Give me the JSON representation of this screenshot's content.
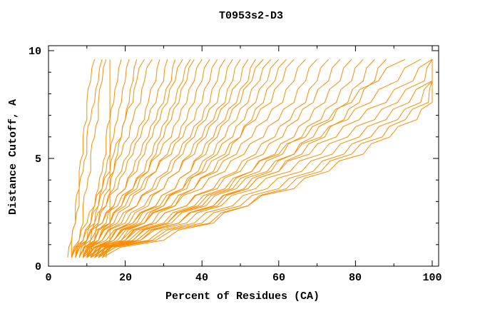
{
  "window": {
    "background_color": "#ffffff",
    "text_color": "#000000"
  },
  "chart_data": {
    "type": "line",
    "title": "T0953s2-D3",
    "xlabel": "Percent of Residues (CA)",
    "ylabel": "Distance Cutoff, A",
    "xlim": [
      0,
      101.7
    ],
    "ylim": [
      0,
      10.25
    ],
    "grid": false,
    "legend": "none",
    "line_color": "#ff8c00",
    "axis_color": "#000000",
    "xticks_major": [
      0,
      20,
      40,
      60,
      80,
      100
    ],
    "xtick_labels": [
      "0",
      "20",
      "40",
      "60",
      "80",
      "100"
    ],
    "xticks_minor": [
      10,
      30,
      50,
      70,
      90
    ],
    "yticks_major": [
      0,
      5,
      10
    ],
    "ytick_labels": [
      "0",
      "5",
      "10"
    ],
    "yticks_minor": [
      1,
      2,
      3,
      4,
      6,
      7,
      8,
      9
    ],
    "cutoffs": [
      0.4,
      1.2,
      2.0,
      2.8,
      3.6,
      4.4,
      5.2,
      6.0,
      6.8,
      7.6,
      8.6,
      9.6
    ],
    "series_percent_by_cutoff": [
      [
        6,
        6,
        7,
        7,
        8,
        8,
        9,
        9,
        10,
        10,
        11,
        12
      ],
      [
        5,
        6,
        7,
        8,
        8,
        9,
        10,
        10,
        11,
        12,
        13,
        14
      ],
      [
        7,
        8,
        9,
        9,
        10,
        11,
        11,
        12,
        13,
        13,
        14,
        15
      ],
      [
        15,
        16,
        16,
        16,
        16,
        16,
        16,
        16,
        16,
        16,
        16,
        16
      ],
      [
        9,
        10,
        11,
        12,
        13,
        14,
        15,
        15,
        16,
        17,
        18,
        19
      ],
      [
        10,
        11,
        12,
        13,
        14,
        15,
        16,
        17,
        18,
        19,
        20,
        21
      ],
      [
        11,
        12,
        13,
        14,
        16,
        17,
        18,
        19,
        20,
        21,
        22,
        23
      ],
      [
        6,
        8,
        10,
        12,
        14,
        16,
        17,
        19,
        20,
        22,
        23,
        25
      ],
      [
        7,
        9,
        11,
        13,
        15,
        17,
        19,
        21,
        22,
        24,
        25,
        27
      ],
      [
        8,
        10,
        13,
        15,
        17,
        19,
        21,
        23,
        25,
        26,
        28,
        29
      ],
      [
        6,
        9,
        12,
        15,
        18,
        20,
        22,
        24,
        26,
        28,
        30,
        31
      ],
      [
        9,
        12,
        15,
        17,
        20,
        22,
        24,
        26,
        28,
        30,
        32,
        33
      ],
      [
        7,
        10,
        14,
        17,
        20,
        23,
        25,
        27,
        29,
        31,
        33,
        35
      ],
      [
        10,
        13,
        16,
        19,
        22,
        25,
        27,
        29,
        31,
        33,
        35,
        37
      ],
      [
        8,
        12,
        16,
        19,
        23,
        26,
        28,
        30,
        32,
        34,
        36,
        38
      ],
      [
        6,
        10,
        14,
        18,
        22,
        26,
        29,
        32,
        34,
        36,
        38,
        40
      ],
      [
        9,
        13,
        17,
        21,
        25,
        28,
        31,
        34,
        36,
        38,
        40,
        42
      ],
      [
        7,
        11,
        16,
        20,
        24,
        28,
        32,
        35,
        38,
        40,
        42,
        44
      ],
      [
        10,
        14,
        19,
        23,
        27,
        31,
        34,
        37,
        40,
        42,
        44,
        46
      ],
      [
        8,
        13,
        18,
        23,
        28,
        32,
        35,
        38,
        41,
        44,
        46,
        48
      ],
      [
        11,
        16,
        21,
        26,
        30,
        34,
        37,
        40,
        43,
        46,
        48,
        50
      ],
      [
        9,
        14,
        20,
        25,
        30,
        34,
        38,
        41,
        44,
        47,
        50,
        52
      ],
      [
        12,
        17,
        23,
        28,
        33,
        37,
        40,
        43,
        46,
        49,
        52,
        54
      ],
      [
        10,
        16,
        22,
        28,
        33,
        37,
        41,
        44,
        47,
        50,
        53,
        56
      ],
      [
        13,
        19,
        25,
        30,
        35,
        39,
        43,
        46,
        49,
        52,
        55,
        58
      ],
      [
        11,
        17,
        24,
        30,
        36,
        40,
        44,
        48,
        51,
        54,
        57,
        60
      ],
      [
        14,
        20,
        27,
        33,
        38,
        43,
        47,
        50,
        53,
        56,
        59,
        62
      ],
      [
        9,
        15,
        22,
        29,
        35,
        41,
        46,
        50,
        54,
        58,
        61,
        64
      ],
      [
        12,
        18,
        25,
        32,
        38,
        44,
        49,
        53,
        57,
        61,
        64,
        67
      ],
      [
        10,
        17,
        25,
        33,
        40,
        46,
        51,
        56,
        60,
        64,
        67,
        70
      ],
      [
        13,
        20,
        28,
        36,
        43,
        49,
        54,
        59,
        63,
        67,
        70,
        73
      ],
      [
        11,
        19,
        28,
        36,
        44,
        50,
        56,
        61,
        65,
        69,
        73,
        76
      ],
      [
        14,
        22,
        31,
        39,
        47,
        53,
        59,
        64,
        68,
        72,
        76,
        79
      ],
      [
        12,
        21,
        31,
        40,
        48,
        55,
        61,
        66,
        71,
        75,
        79,
        82
      ],
      [
        13,
        24,
        34,
        43,
        51,
        58,
        64,
        69,
        74,
        78,
        82,
        85
      ],
      [
        13,
        23,
        34,
        44,
        52,
        60,
        66,
        72,
        77,
        81,
        85,
        88
      ],
      [
        9,
        20,
        30,
        38,
        46,
        53,
        60,
        67,
        73,
        79,
        86,
        93
      ],
      [
        10,
        22,
        32,
        41,
        49,
        57,
        64,
        71,
        78,
        84,
        91,
        97
      ],
      [
        10,
        23,
        34,
        43,
        52,
        60,
        68,
        75,
        81,
        88,
        95,
        100
      ],
      [
        11,
        24,
        36,
        45,
        54,
        63,
        71,
        78,
        85,
        91,
        98,
        100
      ],
      [
        11,
        26,
        38,
        48,
        57,
        66,
        74,
        81,
        88,
        94,
        100,
        100
      ],
      [
        12,
        27,
        40,
        50,
        60,
        69,
        77,
        84,
        91,
        97,
        100,
        100
      ],
      [
        13,
        28,
        42,
        52,
        62,
        71,
        79,
        87,
        93,
        99,
        100,
        100
      ],
      [
        14,
        30,
        43,
        52,
        64,
        73,
        82,
        89,
        96,
        100,
        100,
        100
      ]
    ]
  }
}
